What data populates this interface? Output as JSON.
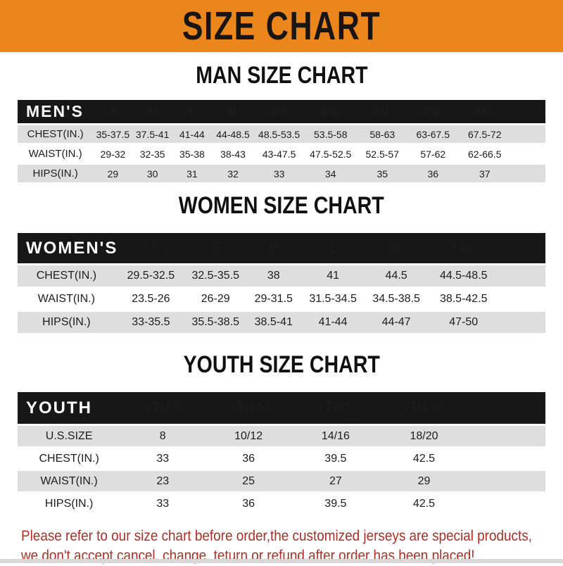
{
  "banner": {
    "title": "SIZE CHART",
    "bg_color": "#EB861D",
    "text_color": "#181512"
  },
  "sections": [
    {
      "title": "MAN SIZE CHART",
      "table": {
        "header_label": "MEN'S",
        "columns": [
          "S",
          "M",
          "L",
          "XL",
          "2XL",
          "3XL",
          "4XL",
          "5XL",
          "6XL"
        ],
        "rows": [
          {
            "label": "CHEST(IN.)",
            "values": [
              "35-37.5",
              "37.5-41",
              "41-44",
              "44-48.5",
              "48.5-53.5",
              "53.5-58",
              "58-63",
              "63-67.5",
              "67.5-72"
            ]
          },
          {
            "label": "WAIST(IN.)",
            "values": [
              "29-32",
              "32-35",
              "35-38",
              "38-43",
              "43-47.5",
              "47.5-52.5",
              "52.5-57",
              "57-62",
              "62-66.5"
            ]
          },
          {
            "label": "HIPS(IN.)",
            "values": [
              "29",
              "30",
              "31",
              "32",
              "33",
              "34",
              "35",
              "36",
              "37"
            ]
          }
        ]
      }
    },
    {
      "title": "WOMEN SIZE CHART",
      "table": {
        "header_label": "WOMEN'S",
        "columns": [
          "XS",
          "S",
          "M",
          "L",
          "XL",
          "XXL"
        ],
        "rows": [
          {
            "label": "CHEST(IN.)",
            "values": [
              "29.5-32.5",
              "32.5-35.5",
              "38",
              "41",
              "44.5",
              "44.5-48.5"
            ]
          },
          {
            "label": "WAIST(IN.)",
            "values": [
              "23.5-26",
              "26-29",
              "29-31.5",
              "31.5-34.5",
              "34.5-38.5",
              "38.5-42.5"
            ]
          },
          {
            "label": "HIPS(IN.)",
            "values": [
              "33-35.5",
              "35.5-38.5",
              "38.5-41",
              "41-44",
              "44-47",
              "47-50"
            ]
          }
        ]
      }
    },
    {
      "title": "YOUTH SIZE CHART",
      "table": {
        "header_label": "YOUTH",
        "columns": [
          "YTH S",
          "YTH M",
          "YTH L",
          "YTH XL"
        ],
        "rows": [
          {
            "label": "U.S.SIZE",
            "values": [
              "8",
              "10/12",
              "14/16",
              "18/20"
            ]
          },
          {
            "label": "CHEST(IN.)",
            "values": [
              "33",
              "36",
              "39.5",
              "42.5"
            ]
          },
          {
            "label": "WAIST(IN.)",
            "values": [
              "23",
              "25",
              "27",
              "29"
            ]
          },
          {
            "label": "HIPS(IN.)",
            "values": [
              "33",
              "36",
              "39.5",
              "42.5"
            ]
          }
        ]
      }
    }
  ],
  "footer_note": {
    "line1": "Please refer to our size chart before order,the customized jerseys are special products,",
    "line2": "we don't accept cancel, change, teturn or refund after order has been placed!",
    "text_color": "#AC2F28"
  },
  "colors": {
    "header_bar": "#171717",
    "row_stripe": "#DEDEDE"
  }
}
